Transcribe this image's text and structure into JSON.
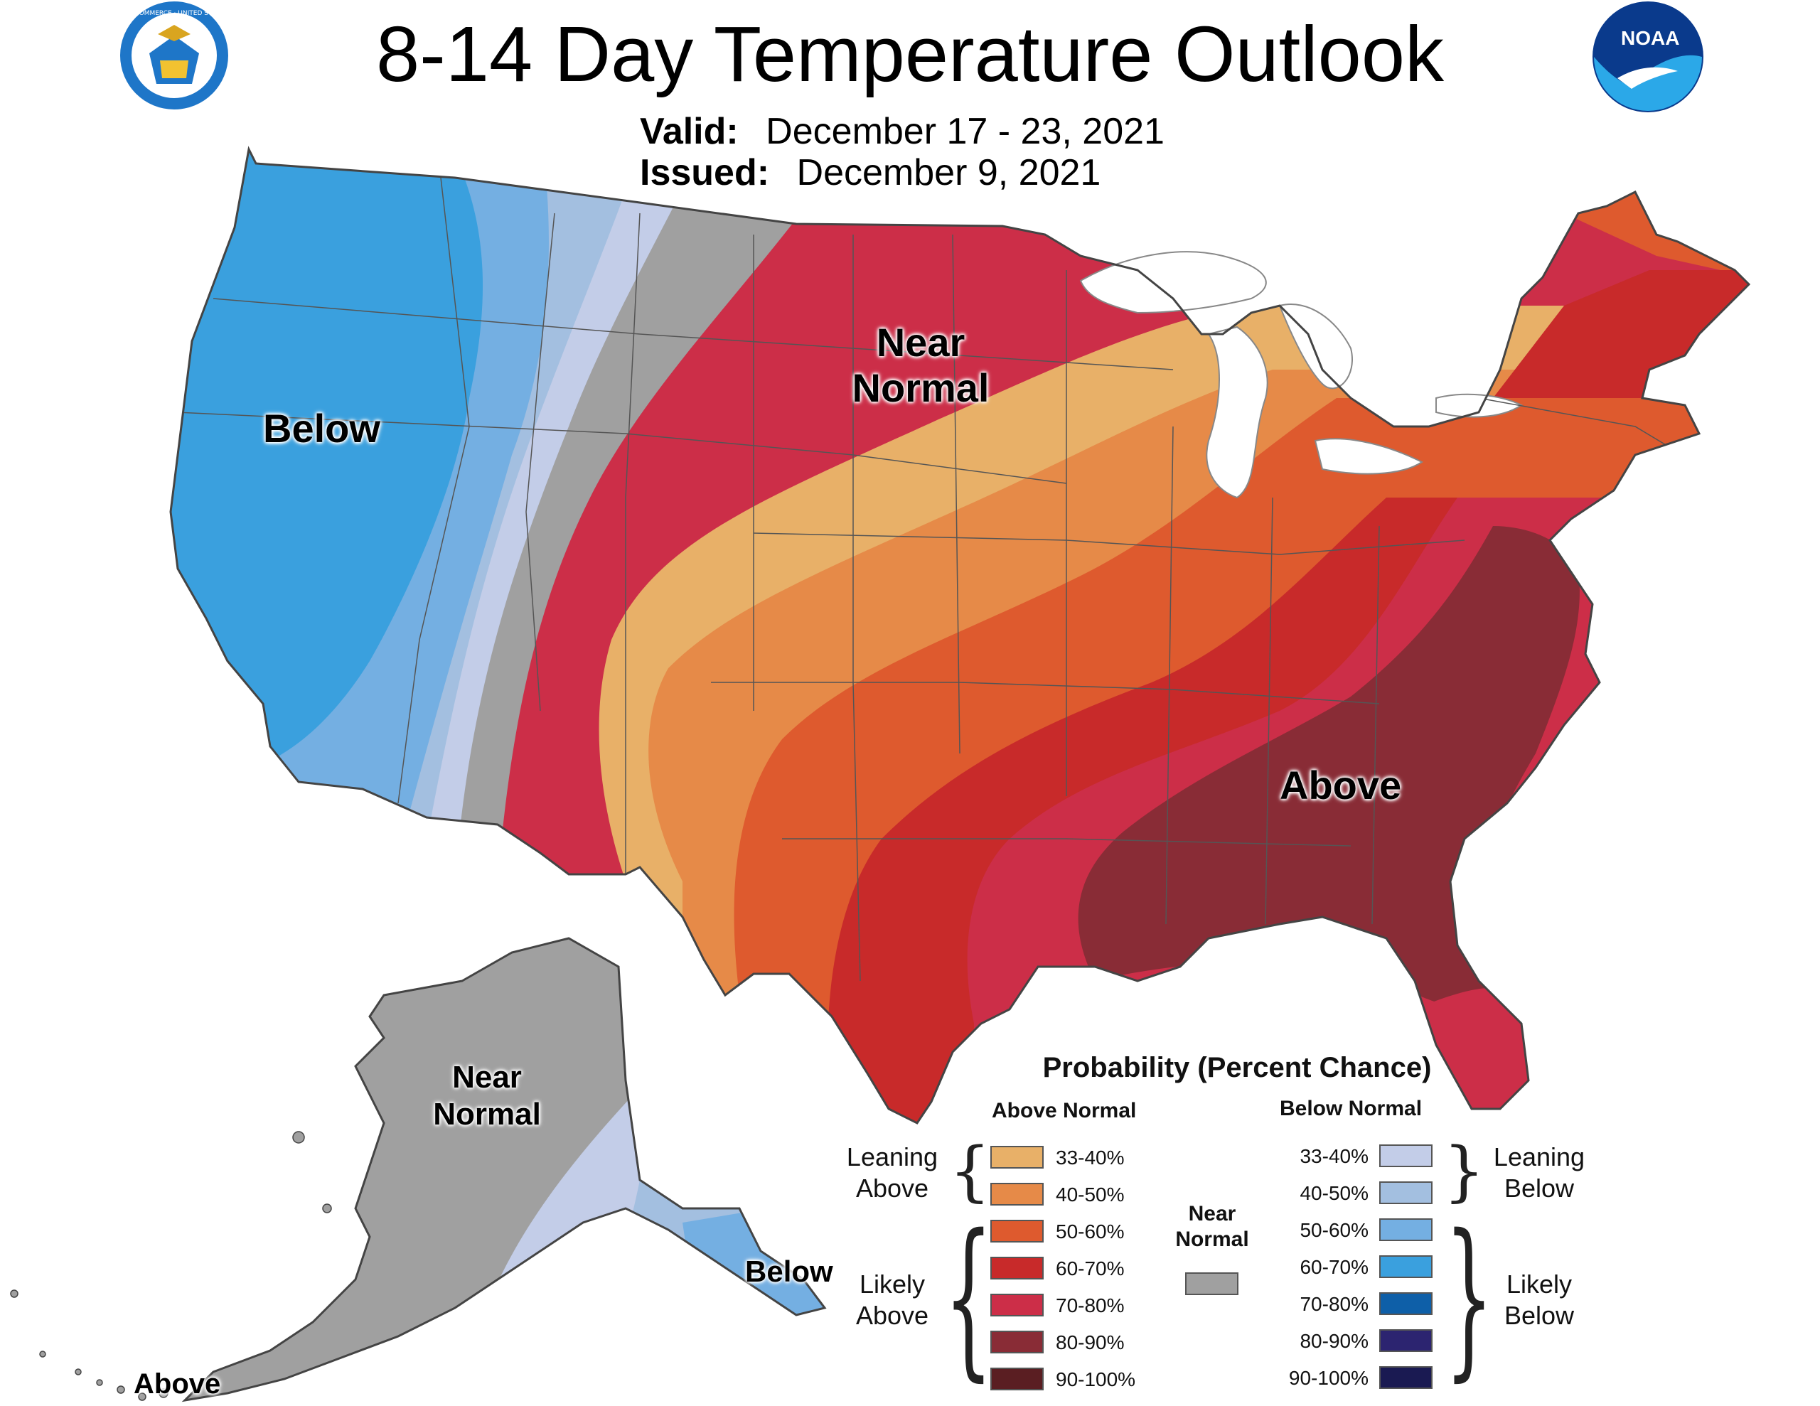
{
  "title": "8-14 Day Temperature Outlook",
  "valid": {
    "label": "Valid:",
    "value": "December 17 - 23, 2021"
  },
  "issued": {
    "label": "Issued:",
    "value": "December 9, 2021"
  },
  "logos": {
    "left": "department-of-commerce-seal",
    "left_text": "DEPARTMENT OF COMMERCE · UNITED STATES OF AMERICA",
    "right": "noaa-logo",
    "right_text": "NOAA"
  },
  "map_labels": {
    "below": "Below",
    "near_normal_1": "Near",
    "near_normal_2": "Normal",
    "above": "Above",
    "ak_near_1": "Near",
    "ak_near_2": "Normal",
    "ak_below": "Below",
    "ak_above": "Above"
  },
  "legend": {
    "title": "Probability (Percent Chance)",
    "above_header": "Above Normal",
    "below_header": "Below Normal",
    "near_header_1": "Near",
    "near_header_2": "Normal",
    "leaning_above_1": "Leaning",
    "leaning_above_2": "Above",
    "likely_above_1": "Likely",
    "likely_above_2": "Above",
    "leaning_below_1": "Leaning",
    "leaning_below_2": "Below",
    "likely_below_1": "Likely",
    "likely_below_2": "Below",
    "above": [
      {
        "range": "33-40%",
        "color": "#E8B068"
      },
      {
        "range": "40-50%",
        "color": "#E68A48"
      },
      {
        "range": "50-60%",
        "color": "#DE5A2E"
      },
      {
        "range": "60-70%",
        "color": "#C82A2A"
      },
      {
        "range": "70-80%",
        "color": "#CC2E48"
      },
      {
        "range": "80-90%",
        "color": "#892C36"
      },
      {
        "range": "90-100%",
        "color": "#5A1E22"
      }
    ],
    "below": [
      {
        "range": "33-40%",
        "color": "#C3CDE8"
      },
      {
        "range": "40-50%",
        "color": "#A3BFE0"
      },
      {
        "range": "50-60%",
        "color": "#74AFE2"
      },
      {
        "range": "60-70%",
        "color": "#3AA0DE"
      },
      {
        "range": "70-80%",
        "color": "#0E5FA8"
      },
      {
        "range": "80-90%",
        "color": "#2C2470"
      },
      {
        "range": "90-100%",
        "color": "#1A1A52"
      }
    ],
    "near_color": "#A0A0A0"
  }
}
